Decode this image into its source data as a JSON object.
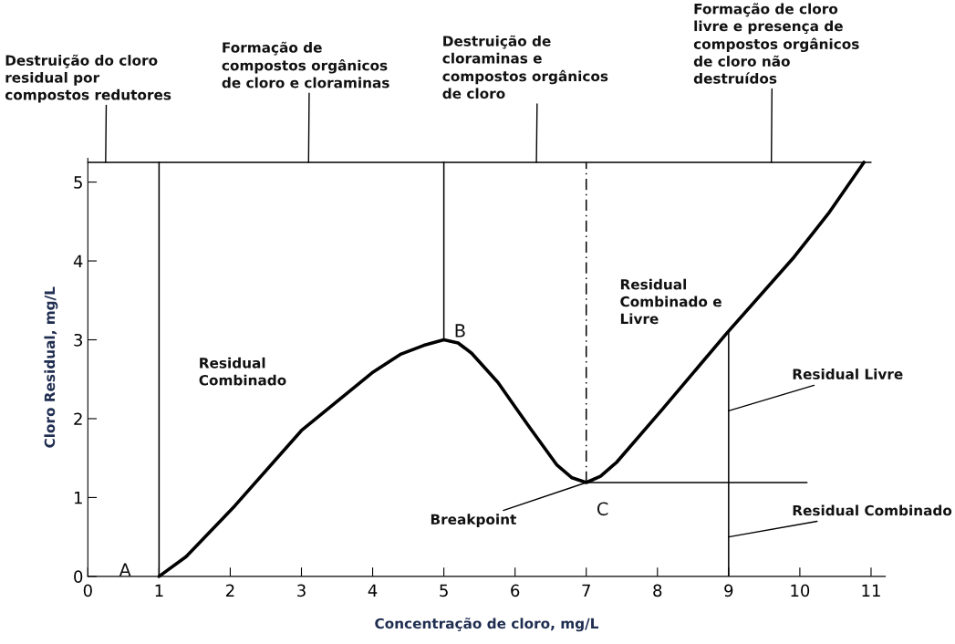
{
  "chart_data": {
    "type": "line",
    "xlabel": "Concentração de cloro, mg/L",
    "ylabel": "Cloro Residual, mg/L",
    "xlim": [
      0,
      11.2
    ],
    "ylim": [
      0,
      5.3
    ],
    "xticks": [
      0,
      1,
      2,
      3,
      4,
      5,
      6,
      7,
      8,
      9,
      10,
      11
    ],
    "yticks": [
      0,
      1,
      2,
      3,
      4,
      5
    ],
    "series": [
      {
        "color": "#000000",
        "x": [
          1,
          1.38,
          2.06,
          3.0,
          3.99,
          4.4,
          4.72,
          5.0,
          5.2,
          5.39,
          5.76,
          6.0,
          6.22,
          6.59,
          6.8,
          7.0,
          7.2,
          7.43,
          8.07,
          8.97,
          9.92,
          10.4,
          10.9
        ],
        "values": [
          0,
          0.25,
          0.89,
          1.85,
          2.58,
          2.82,
          2.93,
          3.0,
          2.96,
          2.83,
          2.46,
          2.15,
          1.87,
          1.41,
          1.25,
          1.19,
          1.27,
          1.45,
          2.12,
          3.08,
          4.05,
          4.6,
          5.25
        ]
      },
      {
        "color": "#000000",
        "x": [
          0,
          11
        ],
        "values": [
          5.25,
          5.25
        ]
      },
      {
        "color": "#000000",
        "x": [
          7,
          10.1
        ],
        "values": [
          1.19,
          1.19
        ]
      }
    ],
    "ref_lines": [
      {
        "axis": "x",
        "value": 1,
        "color": "#000000"
      },
      {
        "axis": "x",
        "value": 5,
        "color": "#000000"
      },
      {
        "axis": "x",
        "value": 7,
        "color": "#000000",
        "line_style": "dashed"
      },
      {
        "axis": "x",
        "value": 9,
        "color": "#000000"
      }
    ],
    "annotations": [
      {
        "text": "Destruição do cloro\nresidual por\ncompostos redutores",
        "x": 0.25,
        "y": 5.25
      },
      {
        "text": "Formação de\ncompostos orgânicos\nde cloro e cloraminas",
        "x": 3.1,
        "y": 5.25
      },
      {
        "text": "Destruição de\ncloraminas e\ncompostos orgânicos\nde cloro",
        "x": 6.3,
        "y": 5.25
      },
      {
        "text": "Formação de cloro\nlivre e presença de\ncompostos orgânicos\nde cloro não\ndestruídos",
        "x": 9.6,
        "y": 5.25
      },
      "Residual\nCombinado",
      "Residual\nCombinado e\nLivre",
      {
        "text": "Residual Livre",
        "x": 9,
        "y": 2.1
      },
      {
        "text": "Residual Combinado",
        "x": 9,
        "y": 0.5
      },
      {
        "text": "A",
        "x": 1,
        "y": 0
      },
      {
        "text": "B",
        "x": 5.0,
        "y": 3.0
      },
      {
        "text": "C",
        "x": 7.0,
        "y": 1.19
      },
      {
        "text": "Breakpoint",
        "x": 7.0,
        "y": 1.19
      }
    ]
  }
}
